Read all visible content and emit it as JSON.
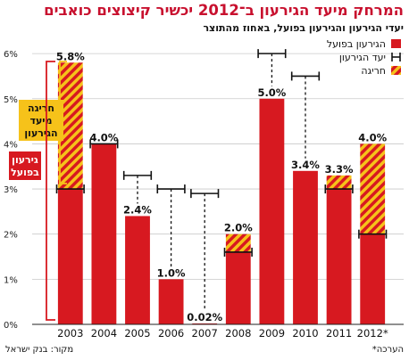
{
  "title": "המרחק מיעד הגירעון ב־2012 יכשיר קיצוצים כואבים",
  "subtitle": "יעדי הגירעון והגירעון בפועל, באחוז מהתוצר",
  "footer": {
    "source": "מקור: בנק ישראל",
    "note": "*הערכה"
  },
  "colors": {
    "actual": "#d71920",
    "deviation_stripe_a": "#d71920",
    "deviation_stripe_b": "#f6c21a",
    "title": "#c8102e",
    "callout_deviation_bg": "#f6c21a",
    "callout_actual_bg": "#d71920"
  },
  "legend": {
    "actual": "הגירעון בפועל",
    "target": "יעד הגירעון",
    "deviation": "חריגה"
  },
  "callouts": {
    "deviation": [
      "חריגה",
      "מיעד",
      "הגירעון"
    ],
    "actual": [
      "גירעון",
      "בפועל"
    ]
  },
  "chart_data": {
    "type": "bar",
    "title": "המרחק מיעד הגירעון ב־2012 יכשיר קיצוצים כואבים",
    "subtitle": "יעדי הגירעון והגירעון בפועל, באחוז מהתוצר",
    "categories": [
      "2003",
      "2004",
      "2005",
      "2006",
      "2007",
      "2008",
      "2009",
      "2010",
      "2011",
      "2012*"
    ],
    "series": [
      {
        "name": "הגירעון בפועל",
        "values": [
          5.8,
          4.0,
          2.4,
          1.0,
          0.02,
          2.0,
          5.0,
          3.4,
          3.3,
          4.0
        ]
      },
      {
        "name": "יעד הגירעון",
        "values": [
          3.0,
          4.0,
          3.3,
          3.0,
          2.9,
          1.6,
          6.0,
          5.5,
          3.0,
          2.0
        ]
      }
    ],
    "data_labels": [
      "5.8%",
      "4.0%",
      "2.4%",
      "1.0%",
      "0.02%",
      "2.0%",
      "5.0%",
      "3.4%",
      "3.3%",
      "4.0%"
    ],
    "yticks": [
      "0%",
      "1%",
      "2%",
      "3%",
      "4%",
      "5%",
      "6%"
    ],
    "ylim": [
      0,
      6.2
    ],
    "grid": true,
    "legend_position": "top-right"
  }
}
